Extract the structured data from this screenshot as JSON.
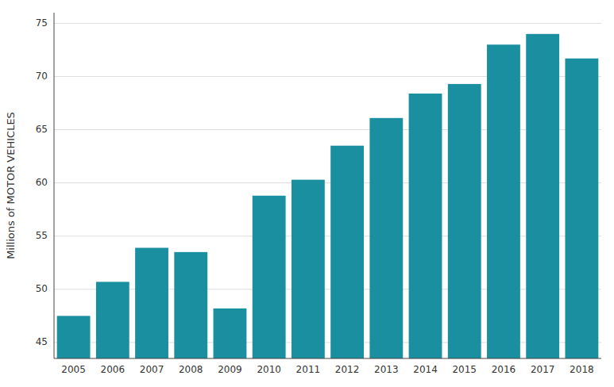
{
  "chart_data": {
    "type": "bar",
    "ylabel": "Millions of MOTOR VEHICLES",
    "categories": [
      "2005",
      "2006",
      "2007",
      "2008",
      "2009",
      "2010",
      "2011",
      "2012",
      "2013",
      "2014",
      "2015",
      "2016",
      "2017",
      "2018"
    ],
    "values": [
      47.5,
      50.7,
      53.9,
      53.5,
      48.2,
      58.8,
      60.3,
      63.5,
      66.1,
      68.4,
      69.3,
      73.0,
      74.0,
      71.7
    ],
    "color": "#1a8fa0",
    "ylim": [
      43.5,
      76
    ],
    "yticks": [
      45,
      50,
      55,
      60,
      65,
      70,
      75
    ],
    "grid": true
  }
}
